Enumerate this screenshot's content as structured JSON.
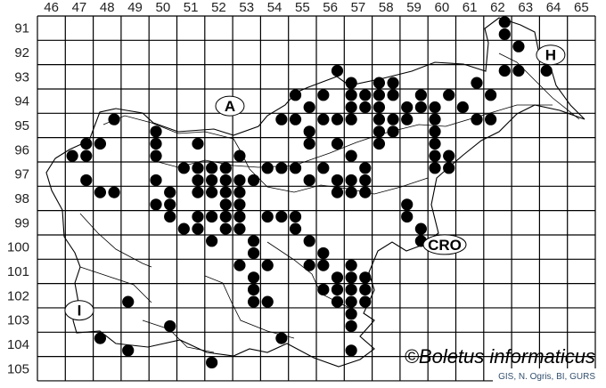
{
  "map": {
    "columns": [
      "46",
      "47",
      "48",
      "49",
      "50",
      "51",
      "52",
      "53",
      "54",
      "55",
      "56",
      "57",
      "58",
      "59",
      "60",
      "61",
      "62",
      "63",
      "64",
      "65"
    ],
    "rows": [
      "91",
      "92",
      "93",
      "94",
      "95",
      "96",
      "97",
      "98",
      "99",
      "100",
      "101",
      "102",
      "103",
      "104",
      "105"
    ],
    "country_labels": [
      {
        "text": "A",
        "col": 52.9,
        "row": 94.7
      },
      {
        "text": "H",
        "col": 64.4,
        "row": 92.6
      },
      {
        "text": "CRO",
        "col": 60.6,
        "row": 100.4
      },
      {
        "text": "I",
        "col": 47.5,
        "row": 103.1
      }
    ],
    "watermark": "©Boletus informaticus",
    "credit": "GIS, N. Ogris, BI, GURS",
    "dot_color": "#000000",
    "records": [
      [
        62.75,
        91.25
      ],
      [
        62.75,
        91.75
      ],
      [
        63.25,
        92.25
      ],
      [
        62.75,
        93.25
      ],
      [
        63.25,
        93.25
      ],
      [
        64.25,
        93.25
      ],
      [
        56.75,
        93.25
      ],
      [
        57.25,
        93.75
      ],
      [
        58.25,
        93.75
      ],
      [
        58.75,
        93.75
      ],
      [
        61.75,
        93.75
      ],
      [
        55.25,
        94.25
      ],
      [
        56.25,
        94.25
      ],
      [
        57.25,
        94.25
      ],
      [
        57.75,
        94.25
      ],
      [
        58.25,
        94.25
      ],
      [
        58.75,
        94.25
      ],
      [
        59.75,
        94.25
      ],
      [
        60.75,
        94.25
      ],
      [
        62.25,
        94.25
      ],
      [
        55.75,
        94.75
      ],
      [
        57.25,
        94.75
      ],
      [
        57.75,
        94.75
      ],
      [
        58.25,
        94.75
      ],
      [
        59.25,
        94.75
      ],
      [
        59.75,
        94.75
      ],
      [
        60.25,
        94.75
      ],
      [
        61.25,
        94.75
      ],
      [
        48.75,
        95.25
      ],
      [
        54.75,
        95.25
      ],
      [
        55.25,
        95.25
      ],
      [
        56.25,
        95.25
      ],
      [
        56.75,
        95.25
      ],
      [
        57.25,
        95.25
      ],
      [
        58.25,
        95.25
      ],
      [
        58.75,
        95.25
      ],
      [
        59.25,
        95.25
      ],
      [
        60.25,
        95.25
      ],
      [
        61.75,
        95.25
      ],
      [
        62.25,
        95.25
      ],
      [
        50.25,
        95.75
      ],
      [
        55.75,
        95.75
      ],
      [
        58.25,
        95.75
      ],
      [
        58.75,
        95.75
      ],
      [
        60.25,
        95.75
      ],
      [
        47.75,
        96.25
      ],
      [
        48.25,
        96.25
      ],
      [
        50.25,
        96.25
      ],
      [
        51.75,
        96.25
      ],
      [
        55.75,
        96.25
      ],
      [
        56.75,
        96.25
      ],
      [
        58.25,
        96.25
      ],
      [
        60.25,
        96.25
      ],
      [
        47.25,
        96.75
      ],
      [
        47.75,
        96.75
      ],
      [
        50.25,
        96.75
      ],
      [
        53.25,
        96.75
      ],
      [
        57.25,
        96.75
      ],
      [
        60.25,
        96.75
      ],
      [
        60.75,
        96.75
      ],
      [
        51.25,
        97.25
      ],
      [
        51.75,
        97.25
      ],
      [
        52.25,
        97.25
      ],
      [
        52.75,
        97.25
      ],
      [
        54.25,
        97.25
      ],
      [
        54.75,
        97.25
      ],
      [
        55.25,
        97.25
      ],
      [
        56.25,
        97.25
      ],
      [
        57.75,
        97.25
      ],
      [
        60.25,
        97.25
      ],
      [
        60.75,
        97.25
      ],
      [
        47.75,
        97.75
      ],
      [
        50.25,
        97.75
      ],
      [
        51.75,
        97.75
      ],
      [
        52.25,
        97.75
      ],
      [
        52.75,
        97.75
      ],
      [
        53.25,
        97.75
      ],
      [
        53.75,
        97.75
      ],
      [
        55.75,
        97.75
      ],
      [
        56.75,
        97.75
      ],
      [
        57.25,
        97.75
      ],
      [
        57.75,
        97.75
      ],
      [
        48.25,
        98.25
      ],
      [
        48.75,
        98.25
      ],
      [
        50.75,
        98.25
      ],
      [
        51.75,
        98.25
      ],
      [
        52.25,
        98.25
      ],
      [
        52.75,
        98.25
      ],
      [
        53.25,
        98.25
      ],
      [
        56.75,
        98.25
      ],
      [
        57.25,
        98.25
      ],
      [
        57.75,
        98.25
      ],
      [
        50.25,
        98.75
      ],
      [
        50.75,
        98.75
      ],
      [
        52.75,
        98.75
      ],
      [
        53.25,
        98.75
      ],
      [
        59.25,
        98.75
      ],
      [
        50.75,
        99.25
      ],
      [
        51.75,
        99.25
      ],
      [
        52.25,
        99.25
      ],
      [
        52.75,
        99.25
      ],
      [
        53.25,
        99.25
      ],
      [
        54.25,
        99.25
      ],
      [
        54.75,
        99.25
      ],
      [
        55.25,
        99.25
      ],
      [
        59.25,
        99.25
      ],
      [
        51.25,
        99.75
      ],
      [
        51.75,
        99.75
      ],
      [
        52.75,
        99.75
      ],
      [
        53.25,
        99.75
      ],
      [
        55.25,
        99.75
      ],
      [
        59.75,
        99.75
      ],
      [
        52.25,
        100.25
      ],
      [
        53.75,
        100.25
      ],
      [
        55.75,
        100.25
      ],
      [
        59.75,
        100.25
      ],
      [
        53.75,
        100.75
      ],
      [
        56.25,
        100.75
      ],
      [
        53.25,
        101.25
      ],
      [
        54.25,
        101.25
      ],
      [
        55.75,
        101.25
      ],
      [
        56.25,
        101.25
      ],
      [
        57.25,
        101.25
      ],
      [
        53.75,
        101.75
      ],
      [
        56.75,
        101.75
      ],
      [
        57.25,
        101.75
      ],
      [
        57.75,
        101.75
      ],
      [
        53.75,
        102.25
      ],
      [
        56.25,
        102.25
      ],
      [
        56.75,
        102.25
      ],
      [
        57.25,
        102.25
      ],
      [
        57.75,
        102.25
      ],
      [
        49.25,
        102.75
      ],
      [
        53.75,
        102.75
      ],
      [
        54.25,
        102.75
      ],
      [
        56.75,
        102.75
      ],
      [
        57.25,
        102.75
      ],
      [
        57.75,
        102.75
      ],
      [
        57.25,
        103.25
      ],
      [
        50.75,
        103.75
      ],
      [
        57.25,
        103.75
      ],
      [
        48.25,
        104.25
      ],
      [
        54.75,
        104.25
      ],
      [
        49.25,
        104.75
      ],
      [
        57.25,
        104.75
      ],
      [
        52.25,
        105.25
      ]
    ]
  }
}
